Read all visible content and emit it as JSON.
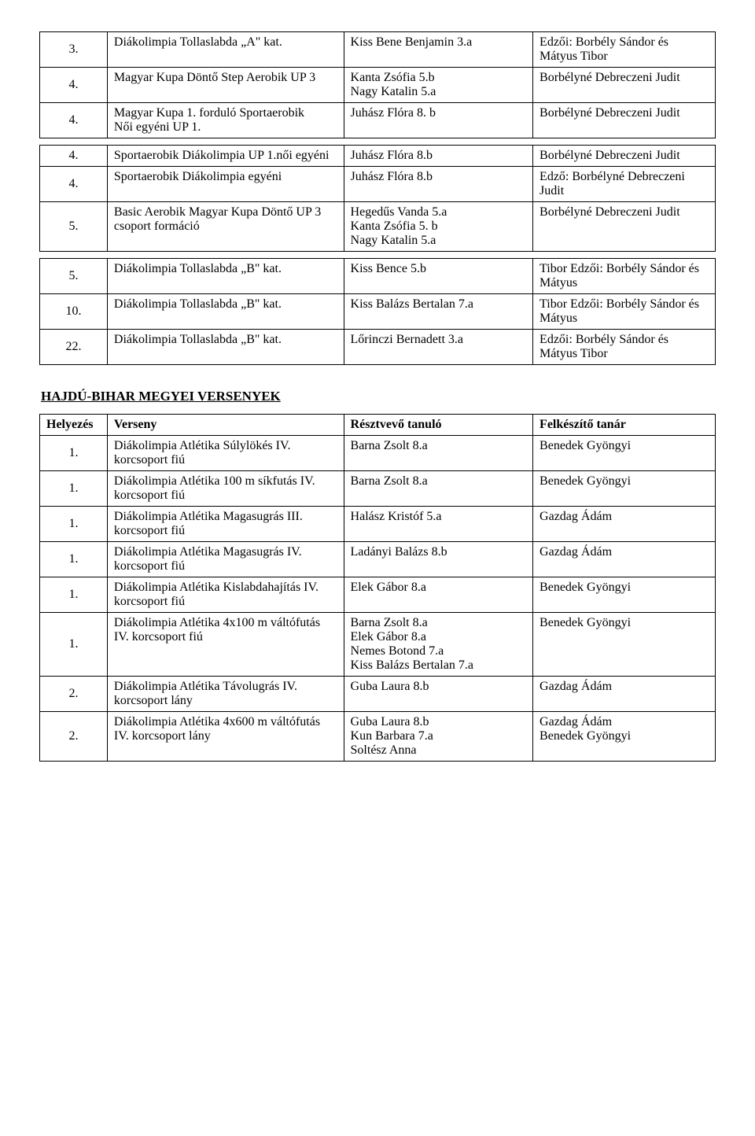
{
  "table1": {
    "rows": [
      {
        "n": "3.",
        "comp": "Diákolimpia Tollaslabda „A\" kat.",
        "part": "Kiss Bene Benjamin 3.a",
        "coach": "Edzői: Borbély Sándor és Mátyus Tibor"
      },
      {
        "n": "4.",
        "comp": "Magyar Kupa Döntő Step Aerobik UP 3",
        "part": "Kanta Zsófia 5.b\nNagy Katalin 5.a",
        "coach": "Borbélyné Debreczeni Judit"
      },
      {
        "n": "4.",
        "comp": "Magyar Kupa 1. forduló Sportaerobik\nNői egyéni UP 1.",
        "part": "Juhász Flóra 8. b",
        "coach": "Borbélyné Debreczeni Judit"
      }
    ]
  },
  "table2": {
    "rows": [
      {
        "n": "4.",
        "comp": "Sportaerobik Diákolimpia UP 1.női egyéni",
        "part": "Juhász Flóra 8.b",
        "coach": "Borbélyné Debreczeni Judit"
      },
      {
        "n": "4.",
        "comp": "Sportaerobik Diákolimpia egyéni",
        "part": "Juhász Flóra 8.b",
        "coach": "Edző: Borbélyné Debreczeni Judit"
      },
      {
        "n": "5.",
        "comp": "Basic Aerobik Magyar Kupa Döntő UP 3  csoport formáció",
        "part": "Hegedűs Vanda 5.a\nKanta Zsófia 5. b\nNagy Katalin 5.a",
        "coach": "Borbélyné Debreczeni Judit"
      }
    ]
  },
  "table3": {
    "rows": [
      {
        "n": "5.",
        "comp": "Diákolimpia Tollaslabda „B\" kat.",
        "part": "Kiss Bence 5.b",
        "coach": "Tibor Edzői: Borbély Sándor és Mátyus"
      },
      {
        "n": "10.",
        "comp": "Diákolimpia Tollaslabda „B\" kat.",
        "part": "Kiss Balázs Bertalan 7.a",
        "coach": "Tibor Edzői: Borbély Sándor és Mátyus"
      },
      {
        "n": "22.",
        "comp": "Diákolimpia Tollaslabda „B\" kat.",
        "part": "Lőrinczi Bernadett 3.a",
        "coach": "Edzői: Borbély Sándor és Mátyus Tibor"
      }
    ]
  },
  "heading2": "HAJDÚ-BIHAR MEGYEI VERSENYEK",
  "table4": {
    "headers": {
      "n": "Helyezés",
      "comp": "Verseny",
      "part": "Résztvevő tanuló",
      "coach": "Felkészítő tanár"
    },
    "rows": [
      {
        "n": "1.",
        "comp": "Diákolimpia Atlétika Súlylökés IV. korcsoport fiú",
        "part": "Barna Zsolt 8.a",
        "coach": "Benedek Gyöngyi"
      },
      {
        "n": "1.",
        "comp": "Diákolimpia Atlétika 100 m síkfutás IV. korcsoport fiú",
        "part": "Barna Zsolt 8.a",
        "coach": "Benedek Gyöngyi"
      },
      {
        "n": "1.",
        "comp": "Diákolimpia Atlétika Magasugrás III. korcsoport fiú",
        "part": "Halász Kristóf 5.a",
        "coach": "Gazdag Ádám"
      },
      {
        "n": "1.",
        "comp": "Diákolimpia Atlétika Magasugrás IV. korcsoport fiú",
        "part": "Ladányi Balázs 8.b",
        "coach": "Gazdag Ádám"
      },
      {
        "n": "1.",
        "comp": "Diákolimpia Atlétika Kislabdahajítás IV. korcsoport fiú",
        "part": "Elek Gábor 8.a",
        "coach": "Benedek Gyöngyi"
      },
      {
        "n": "1.",
        "comp": "Diákolimpia Atlétika 4x100 m váltófutás IV. korcsoport fiú",
        "part": "Barna Zsolt 8.a\nElek Gábor 8.a\nNemes Botond 7.a\nKiss Balázs Bertalan 7.a",
        "coach": "Benedek Gyöngyi"
      },
      {
        "n": "2.",
        "comp": "Diákolimpia Atlétika Távolugrás IV. korcsoport lány",
        "part": "Guba Laura 8.b",
        "coach": "Gazdag Ádám"
      },
      {
        "n": "2.",
        "comp": "Diákolimpia Atlétika 4x600 m váltófutás IV. korcsoport lány",
        "part": "Guba Laura 8.b\nKun Barbara 7.a\nSoltész Anna",
        "coach": "Gazdag Ádám\nBenedek Gyöngyi"
      }
    ]
  }
}
